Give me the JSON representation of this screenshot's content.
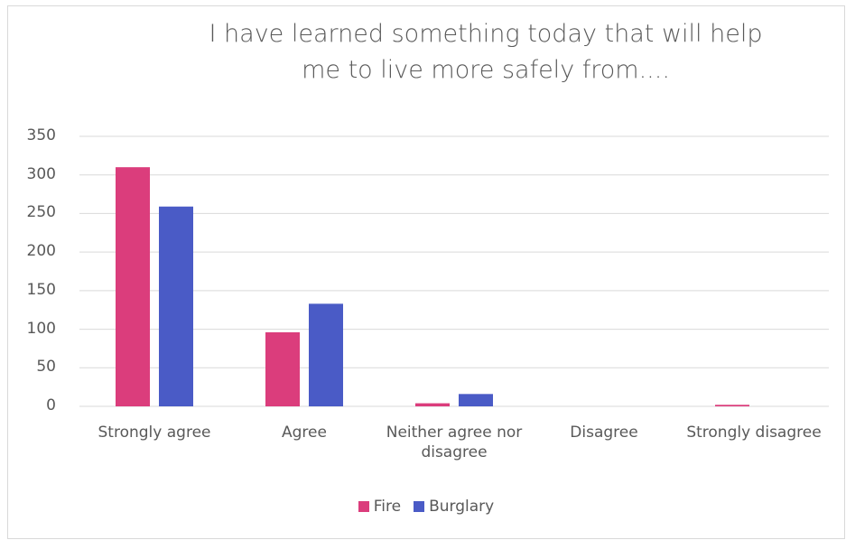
{
  "chart_data": {
    "type": "bar",
    "title": "I have learned something today that will help me to live more safely from....",
    "categories": [
      "Strongly agree",
      "Agree",
      "Neither agree nor disagree",
      "Disagree",
      "Strongly disagree"
    ],
    "series": [
      {
        "name": "Fire",
        "color": "#db3d7c",
        "values": [
          310,
          96,
          4,
          0,
          2
        ]
      },
      {
        "name": "Burglary",
        "color": "#4a5bc6",
        "values": [
          259,
          133,
          16,
          0,
          0
        ]
      }
    ],
    "ylim": [
      0,
      350
    ],
    "yticks": [
      0,
      50,
      100,
      150,
      200,
      250,
      300,
      350
    ],
    "grid": true,
    "legend": "bottom"
  }
}
